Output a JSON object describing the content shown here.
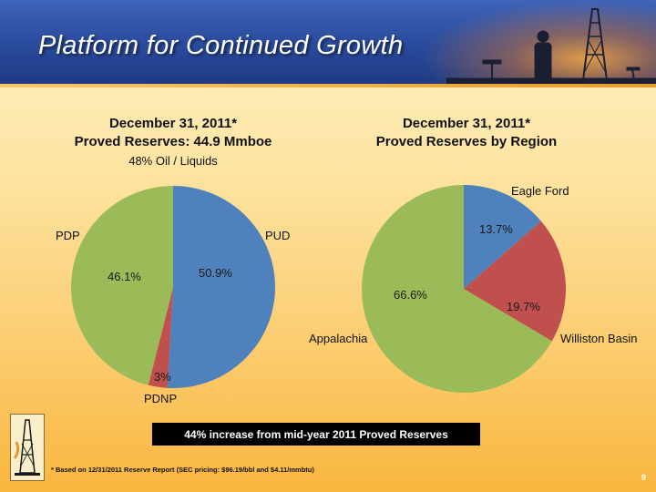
{
  "header": {
    "title": "Platform for Continued Growth"
  },
  "chart_data": [
    {
      "type": "pie",
      "title_line1": "December 31, 2011*",
      "title_line2": "Proved Reserves: 44.9 Mmboe",
      "subtitle": "48% Oil / Liquids",
      "slices": [
        {
          "name": "PUD",
          "value": 50.9,
          "label": "50.9%",
          "color": "#4f81bd"
        },
        {
          "name": "PDNP",
          "value": 3.0,
          "label": "3%",
          "color": "#c0504d"
        },
        {
          "name": "PDP",
          "value": 46.1,
          "label": "46.1%",
          "color": "#9bbb59"
        }
      ]
    },
    {
      "type": "pie",
      "title_line1": "December 31, 2011*",
      "title_line2": "Proved Reserves by Region",
      "slices": [
        {
          "name": "Eagle Ford",
          "value": 13.7,
          "label": "13.7%",
          "color": "#4f81bd"
        },
        {
          "name": "Williston Basin",
          "value": 19.7,
          "label": "19.7%",
          "color": "#c0504d"
        },
        {
          "name": "Appalachia",
          "value": 66.6,
          "label": "66.6%",
          "color": "#9bbb59"
        }
      ]
    }
  ],
  "banner": {
    "text": "44% increase from mid-year 2011 Proved Reserves"
  },
  "footnote": {
    "text": "* Based on 12/31/2011 Reserve Report (SEC pricing: $96.19/bbl and $4.11/mmbtu)"
  },
  "page_number": "9"
}
